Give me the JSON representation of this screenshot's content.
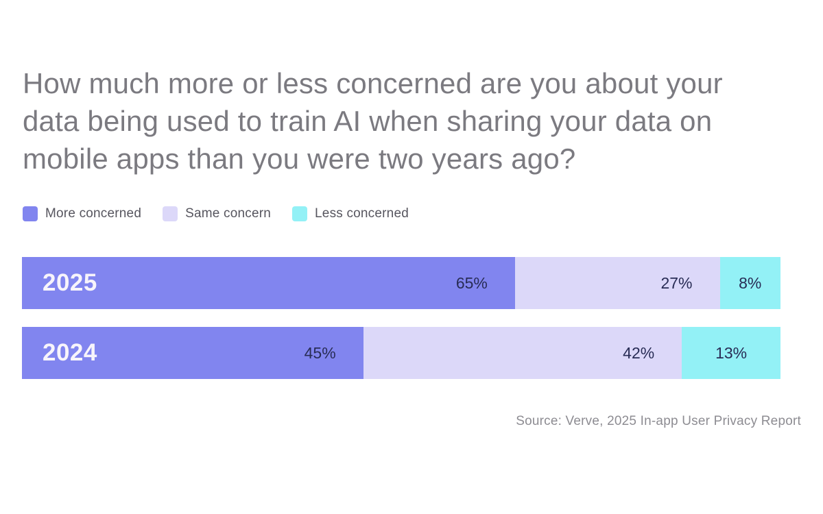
{
  "title": "How much more or less concerned are you about your data being used to train AI when sharing your data on mobile apps than you were two years ago?",
  "source": "Source: Verve, 2025 In-app User Privacy Report",
  "colors": {
    "background": "#ffffff",
    "title_text": "#7b7a80",
    "legend_text": "#56555e",
    "value_label_text": "#282c55",
    "year_label_text": "#f7f4fb",
    "source_text": "#8d8c92",
    "more_concerned": "#8185ef",
    "same_concern": "#dcd8f9",
    "less_concerned": "#93f1f6"
  },
  "chart_data": {
    "type": "bar",
    "orientation": "horizontal",
    "stacked": true,
    "unit": "%",
    "categories": [
      "2025",
      "2024"
    ],
    "series": [
      {
        "name": "More concerned",
        "color": "#8185ef",
        "values": [
          65,
          45
        ]
      },
      {
        "name": "Same concern",
        "color": "#dcd8f9",
        "values": [
          27,
          42
        ]
      },
      {
        "name": "Less concerned",
        "color": "#93f1f6",
        "values": [
          8,
          13
        ]
      }
    ],
    "xlim": [
      0,
      100
    ],
    "legend_position": "top",
    "grid": false,
    "value_labels_shown": true
  }
}
